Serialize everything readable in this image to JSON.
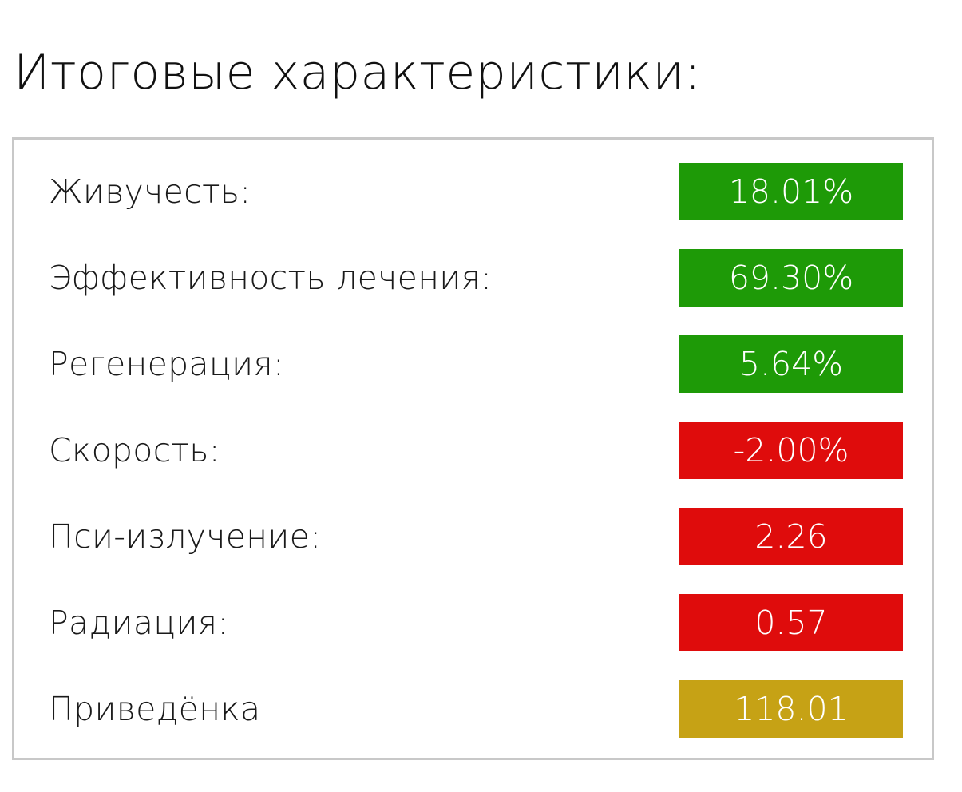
{
  "title": "Итоговые характеристики:",
  "status_colors": {
    "good": "#1e9a07",
    "bad": "#df0c0c",
    "neutral": "#c6a215"
  },
  "stats": [
    {
      "label": "Живучесть:",
      "value": "18.01%",
      "status": "good"
    },
    {
      "label": "Эффективность лечения:",
      "value": "69.30%",
      "status": "good"
    },
    {
      "label": "Регенерация:",
      "value": "5.64%",
      "status": "good"
    },
    {
      "label": "Скорость:",
      "value": "-2.00%",
      "status": "bad"
    },
    {
      "label": "Пси-излучение:",
      "value": "2.26",
      "status": "bad"
    },
    {
      "label": "Радиация:",
      "value": "0.57",
      "status": "bad"
    },
    {
      "label": "Приведёнка",
      "value": "118.01",
      "status": "neutral"
    }
  ]
}
